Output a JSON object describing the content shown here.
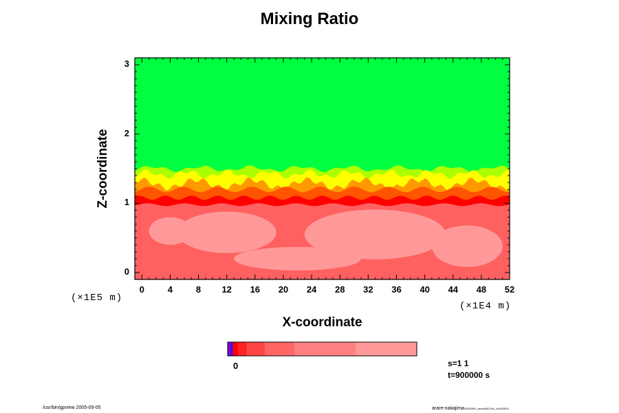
{
  "chart_data": {
    "type": "heatmap",
    "title": "Mixing Ratio",
    "xlabel": "X-coordinate",
    "ylabel": "Z-coordinate",
    "x_scale_label": "(×1E4 m)",
    "y_scale_label": "(×1E5 m)",
    "xlim": [
      -1,
      52
    ],
    "ylim": [
      -0.1,
      3.1
    ],
    "x_ticks": [
      "0",
      "4",
      "8",
      "12",
      "16",
      "20",
      "24",
      "28",
      "32",
      "36",
      "40",
      "44",
      "48",
      "52"
    ],
    "y_ticks": [
      "0",
      "1",
      "2",
      "3"
    ],
    "grid": false,
    "colors": {
      "upper_layer": "#00ff40",
      "mixing_yellow": "#ffff00",
      "mixing_orange": "#ff9900",
      "interface_red": "#ff0000",
      "lower_layer": "#ff6060",
      "lower_light": "#ff9999"
    },
    "interface_z": 1.02,
    "top_of_mixing_z": 1.4,
    "colorbar": {
      "label": "0",
      "segments": [
        "#8800cc",
        "#1a1aff",
        "#ff0000",
        "#ff2222",
        "#ff4444",
        "#ff6666",
        "#ff8080",
        "#ff9999"
      ],
      "widths": [
        1,
        0.6,
        1.6,
        2.8,
        5.8,
        9.5,
        19.5,
        19.5
      ]
    },
    "info": {
      "s": "s=1 1",
      "t": "t=900000 s"
    }
  },
  "footer": {
    "left": "/usr/bin/gpview 2005-09-05",
    "right": "arare-nakajima",
    "right_small": "20050903_arare@ID:NK_s1t900000"
  }
}
